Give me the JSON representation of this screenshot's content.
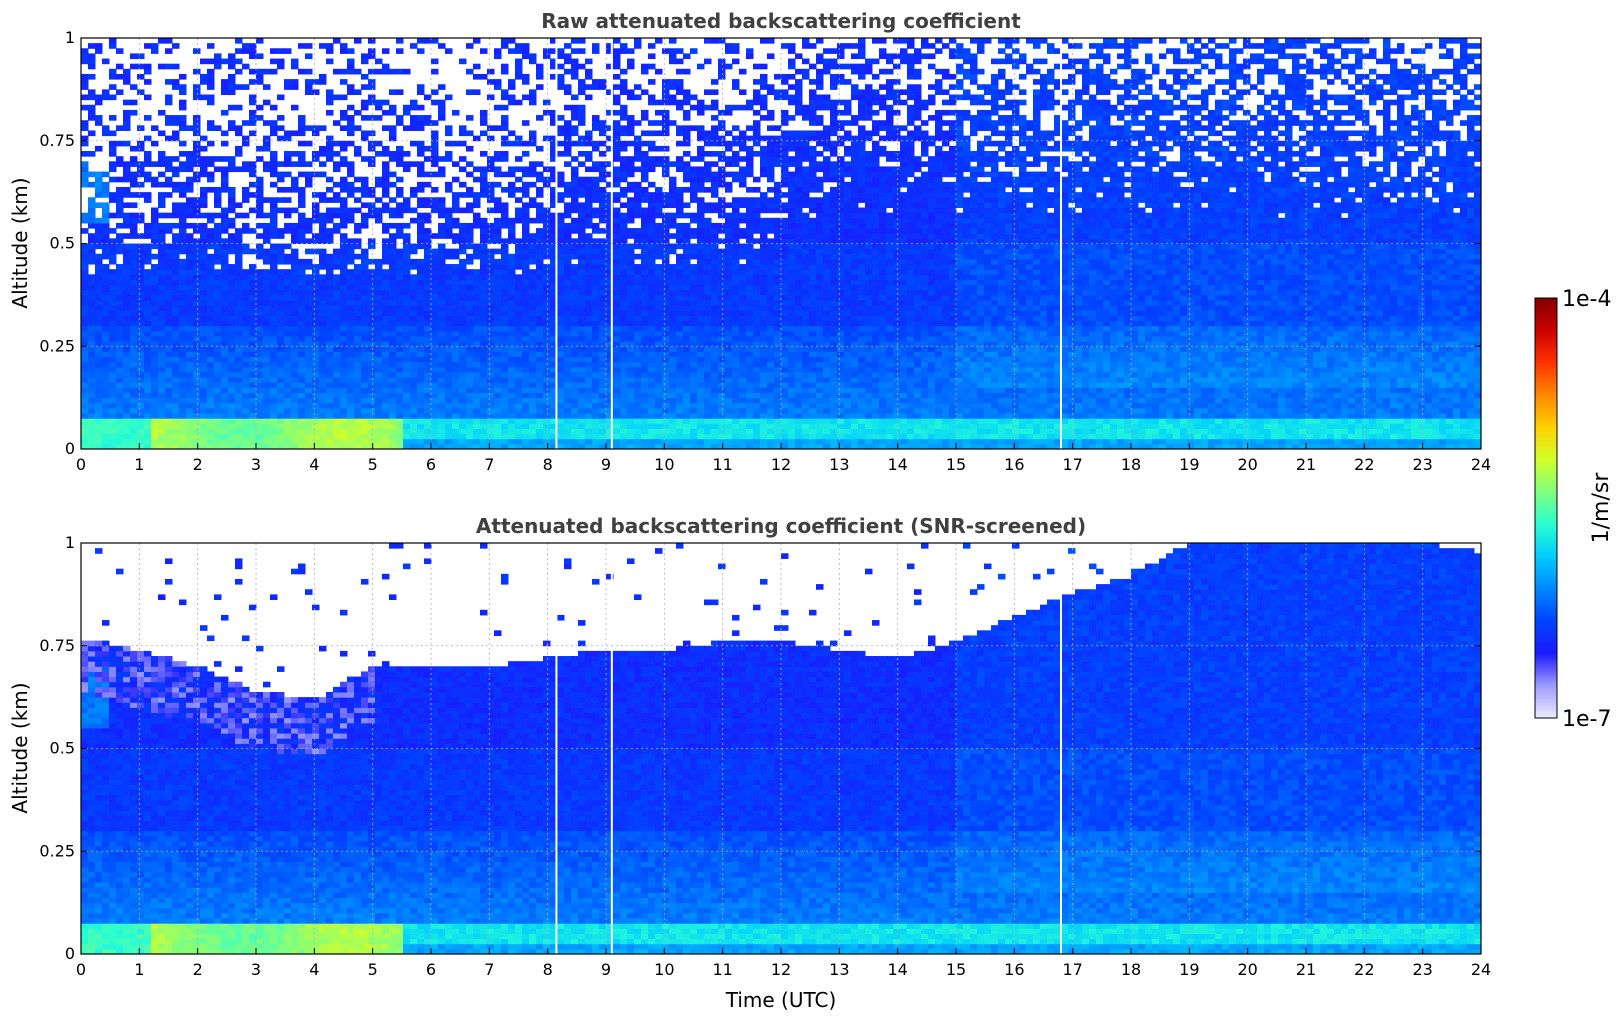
{
  "chart_data": [
    {
      "type": "heatmap",
      "title": "Raw attenuated backscattering coefficient",
      "xlabel": "",
      "ylabel": "Altitude (km)",
      "xlim": [
        0,
        24
      ],
      "ylim": [
        0,
        1
      ],
      "x_ticks": [
        "0",
        "1",
        "2",
        "3",
        "4",
        "5",
        "6",
        "7",
        "8",
        "9",
        "10",
        "11",
        "12",
        "13",
        "14",
        "15",
        "16",
        "17",
        "18",
        "19",
        "20",
        "21",
        "22",
        "23",
        "24"
      ],
      "y_ticks": [
        "0",
        "0.25",
        "0.5",
        "0.75",
        "1"
      ],
      "grid": true,
      "gaps_utc": [
        8.15,
        9.1,
        16.8
      ],
      "description_of_field": {
        "surface_layer_km": [
          0,
          0.08
        ],
        "surface_layer_peak_hours": [
          1.5,
          5.5
        ],
        "noise_dominated_above_km": 0.5
      }
    },
    {
      "type": "heatmap",
      "title": "Attenuated backscattering coefficient (SNR-screened)",
      "xlabel": "Time (UTC)",
      "ylabel": "Altitude (km)",
      "xlim": [
        0,
        24
      ],
      "ylim": [
        0,
        1
      ],
      "x_ticks": [
        "0",
        "1",
        "2",
        "3",
        "4",
        "5",
        "6",
        "7",
        "8",
        "9",
        "10",
        "11",
        "12",
        "13",
        "14",
        "15",
        "16",
        "17",
        "18",
        "19",
        "20",
        "21",
        "22",
        "23",
        "24"
      ],
      "y_ticks": [
        "0",
        "0.25",
        "0.5",
        "0.75",
        "1"
      ],
      "grid": true,
      "gaps_utc": [
        8.15,
        9.1,
        16.8
      ],
      "signal_top_km": {
        "hours": [
          0,
          1,
          2,
          3,
          4,
          5,
          6,
          7,
          8,
          9,
          10,
          11,
          12,
          13,
          14,
          15,
          16,
          17,
          18,
          19,
          20,
          21,
          22,
          23,
          24
        ],
        "values": [
          0.75,
          0.72,
          0.68,
          0.62,
          0.6,
          0.68,
          0.68,
          0.68,
          0.7,
          0.72,
          0.72,
          0.74,
          0.74,
          0.72,
          0.7,
          0.74,
          0.8,
          0.86,
          0.9,
          0.98,
          1.0,
          1.0,
          1.0,
          0.98,
          0.96
        ]
      }
    }
  ],
  "colorbar": {
    "label": "1/m/sr",
    "min_label": "1e-7",
    "max_label": "1e-4",
    "scale": "log",
    "colormap": [
      "#ece9ff",
      "#9c9cff",
      "#1a1aff",
      "#0044ff",
      "#0088ff",
      "#00ccff",
      "#2affd2",
      "#7fff7f",
      "#d2ff2a",
      "#ffd000",
      "#ff8800",
      "#ff3300",
      "#cc0000",
      "#800000"
    ]
  }
}
